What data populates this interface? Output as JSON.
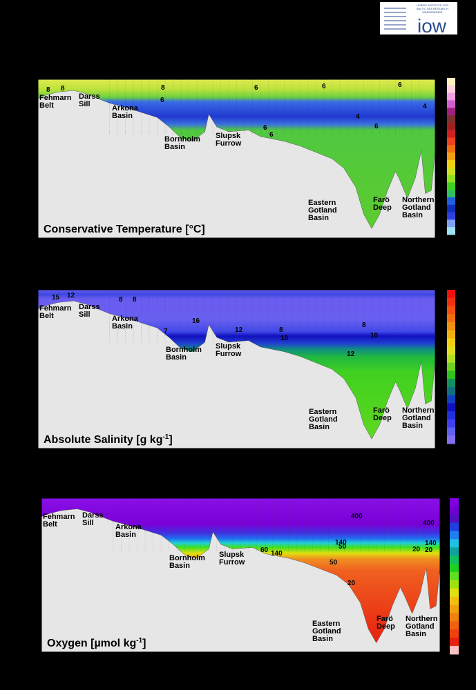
{
  "logo": {
    "small_text": [
      "LEIBNIZ INSTITUTE FOR",
      "BALTIC SEA RESEARCH",
      "WARNEMÜNDE"
    ],
    "name": "iow"
  },
  "panels": [
    {
      "title": "Conservative Temperature [°C]",
      "basins": [
        {
          "lines": [
            "Fehmarn",
            "Belt"
          ]
        },
        {
          "lines": [
            "Darss",
            "Sill"
          ]
        },
        {
          "lines": [
            "Arkona",
            "Basin"
          ]
        },
        {
          "lines": [
            "Bornholm",
            "Basin"
          ]
        },
        {
          "lines": [
            "Slupsk",
            "Furrow"
          ]
        },
        {
          "lines": [
            "Eastern",
            "Gotland",
            "Basin"
          ]
        },
        {
          "lines": [
            "Farö",
            "Deep"
          ]
        },
        {
          "lines": [
            "Northern",
            "Gotland",
            "Basin"
          ]
        }
      ],
      "contour_labels": [
        8,
        8,
        8,
        6,
        6,
        6,
        6,
        4,
        6,
        6,
        6,
        4
      ]
    },
    {
      "title": "Absolute Salinity [g kg",
      "title_sup": "-1",
      "title_end": "]",
      "basins": [
        {
          "lines": [
            "Fehmarn",
            "Belt"
          ]
        },
        {
          "lines": [
            "Darss",
            "Sill"
          ]
        },
        {
          "lines": [
            "Arkona",
            "Basin"
          ]
        },
        {
          "lines": [
            "Bornholm",
            "Basin"
          ]
        },
        {
          "lines": [
            "Slupsk",
            "Furrow"
          ]
        },
        {
          "lines": [
            "Eastern",
            "Gotland",
            "Basin"
          ]
        },
        {
          "lines": [
            "Farö",
            "Deep"
          ]
        },
        {
          "lines": [
            "Northern",
            "Gotland",
            "Basin"
          ]
        }
      ],
      "contour_labels": [
        15,
        12,
        8,
        8,
        16,
        12,
        8,
        10,
        12,
        10,
        8,
        7
      ]
    },
    {
      "title": "Oxygen [µmol kg",
      "title_sup": "-1",
      "title_end": "]",
      "basins": [
        {
          "lines": [
            "Fehmarn",
            "Belt"
          ]
        },
        {
          "lines": [
            "Darss",
            "Sill"
          ]
        },
        {
          "lines": [
            "Arkona",
            "Basin"
          ]
        },
        {
          "lines": [
            "Bornholm",
            "Basin"
          ]
        },
        {
          "lines": [
            "Slupsk",
            "Furrow"
          ]
        },
        {
          "lines": [
            "Eastern",
            "Gotland",
            "Basin"
          ]
        },
        {
          "lines": [
            "Farö",
            "Deep"
          ]
        },
        {
          "lines": [
            "Northern",
            "Gotland",
            "Basin"
          ]
        }
      ],
      "contour_labels": [
        400,
        400,
        140,
        50,
        140,
        50,
        20,
        20,
        140,
        20,
        60
      ]
    }
  ]
}
